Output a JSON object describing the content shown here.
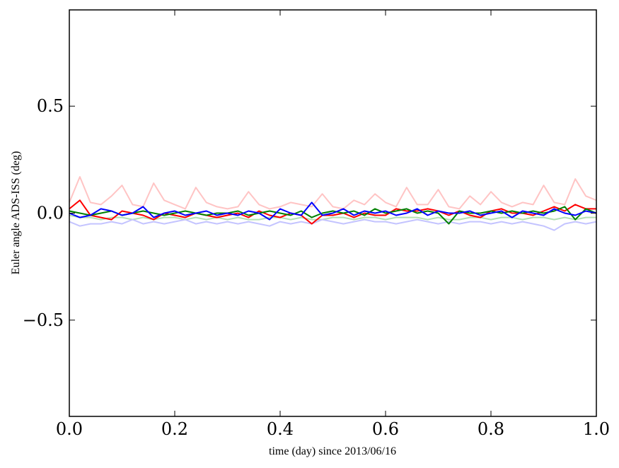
{
  "chart_data": {
    "type": "line",
    "xlabel": "time (day) since 2013/06/16",
    "ylabel": "Euler angle ADS-ISS (deg)",
    "xlim": [
      0.0,
      1.0
    ],
    "ylim": [
      -0.95,
      0.95
    ],
    "xticks": [
      0.0,
      0.2,
      0.4,
      0.6,
      0.8,
      1.0
    ],
    "xtick_labels": [
      "0.0",
      "0.2",
      "0.4",
      "0.6",
      "0.8",
      "1.0"
    ],
    "yticks": [
      -0.5,
      0.0,
      0.5
    ],
    "ytick_labels": [
      "−0.5",
      "0.0",
      "0.5"
    ],
    "grid": false,
    "x": [
      0.0,
      0.02,
      0.04,
      0.06,
      0.08,
      0.1,
      0.12,
      0.14,
      0.16,
      0.18,
      0.2,
      0.22,
      0.24,
      0.26,
      0.28,
      0.3,
      0.32,
      0.34,
      0.36,
      0.38,
      0.4,
      0.42,
      0.44,
      0.46,
      0.48,
      0.5,
      0.52,
      0.54,
      0.56,
      0.58,
      0.6,
      0.62,
      0.64,
      0.66,
      0.68,
      0.7,
      0.72,
      0.74,
      0.76,
      0.78,
      0.8,
      0.82,
      0.84,
      0.86,
      0.88,
      0.9,
      0.92,
      0.94,
      0.96,
      0.98,
      1.0
    ],
    "series": [
      {
        "color": "#ffc4c4",
        "values": [
          0.05,
          0.17,
          0.05,
          0.04,
          0.08,
          0.13,
          0.04,
          0.03,
          0.14,
          0.06,
          0.04,
          0.02,
          0.12,
          0.05,
          0.03,
          0.02,
          0.03,
          0.1,
          0.04,
          0.02,
          0.03,
          0.05,
          0.04,
          0.03,
          0.09,
          0.03,
          0.02,
          0.06,
          0.04,
          0.09,
          0.05,
          0.03,
          0.12,
          0.04,
          0.04,
          0.11,
          0.03,
          0.02,
          0.08,
          0.04,
          0.1,
          0.05,
          0.03,
          0.05,
          0.04,
          0.13,
          0.05,
          0.04,
          0.16,
          0.08,
          0.06
        ]
      },
      {
        "color": "#b4e0b4",
        "values": [
          -0.01,
          -0.02,
          -0.02,
          -0.03,
          -0.02,
          -0.02,
          -0.03,
          -0.02,
          -0.03,
          -0.02,
          -0.02,
          -0.03,
          -0.02,
          -0.03,
          -0.02,
          -0.03,
          -0.02,
          -0.03,
          -0.03,
          -0.02,
          -0.02,
          -0.03,
          -0.02,
          -0.03,
          -0.03,
          -0.02,
          -0.02,
          -0.03,
          -0.02,
          -0.02,
          -0.03,
          -0.02,
          -0.02,
          -0.02,
          -0.03,
          -0.02,
          -0.03,
          -0.03,
          -0.02,
          -0.02,
          -0.03,
          -0.02,
          -0.02,
          -0.03,
          -0.02,
          -0.02,
          -0.03,
          -0.02,
          -0.03,
          -0.02,
          -0.02
        ]
      },
      {
        "color": "#c4c4ff",
        "values": [
          -0.04,
          -0.06,
          -0.05,
          -0.05,
          -0.04,
          -0.05,
          -0.03,
          -0.05,
          -0.04,
          -0.05,
          -0.04,
          -0.03,
          -0.05,
          -0.04,
          -0.05,
          -0.04,
          -0.05,
          -0.04,
          -0.05,
          -0.06,
          -0.04,
          -0.05,
          -0.04,
          -0.05,
          -0.03,
          -0.04,
          -0.05,
          -0.04,
          -0.03,
          -0.04,
          -0.04,
          -0.05,
          -0.04,
          -0.03,
          -0.04,
          -0.05,
          -0.04,
          -0.05,
          -0.04,
          -0.04,
          -0.05,
          -0.04,
          -0.05,
          -0.04,
          -0.05,
          -0.06,
          -0.08,
          -0.05,
          -0.04,
          -0.05,
          -0.04
        ]
      },
      {
        "color": "#ff0000",
        "values": [
          0.02,
          0.06,
          -0.01,
          -0.02,
          -0.03,
          0.01,
          0.0,
          -0.01,
          -0.03,
          0.0,
          -0.01,
          -0.02,
          0.0,
          -0.01,
          -0.02,
          -0.01,
          0.0,
          -0.02,
          0.01,
          -0.01,
          -0.02,
          0.0,
          -0.01,
          -0.05,
          -0.01,
          -0.01,
          0.0,
          -0.02,
          0.0,
          -0.01,
          -0.01,
          0.02,
          0.01,
          0.01,
          0.02,
          0.01,
          -0.01,
          0.01,
          -0.01,
          -0.02,
          0.01,
          0.02,
          0.0,
          0.0,
          -0.01,
          0.01,
          0.03,
          0.01,
          0.04,
          0.02,
          0.02
        ]
      },
      {
        "color": "#008000",
        "values": [
          0.01,
          0.0,
          -0.01,
          0.0,
          0.01,
          -0.01,
          0.0,
          0.01,
          0.0,
          -0.01,
          0.0,
          0.01,
          0.0,
          -0.01,
          0.0,
          0.0,
          0.01,
          -0.01,
          0.0,
          0.01,
          0.0,
          -0.01,
          0.01,
          -0.02,
          0.0,
          0.01,
          0.0,
          0.01,
          -0.01,
          0.02,
          0.0,
          0.01,
          0.02,
          0.0,
          0.01,
          0.0,
          -0.05,
          0.01,
          0.0,
          0.0,
          0.01,
          0.0,
          0.01,
          0.0,
          0.01,
          0.0,
          0.01,
          0.03,
          -0.03,
          0.02,
          0.0
        ]
      },
      {
        "color": "#0000ff",
        "values": [
          0.0,
          -0.02,
          -0.01,
          0.02,
          0.01,
          -0.01,
          0.0,
          0.03,
          -0.02,
          0.0,
          0.01,
          -0.01,
          0.0,
          0.01,
          -0.01,
          0.0,
          -0.01,
          0.01,
          0.0,
          -0.03,
          0.02,
          0.0,
          -0.01,
          0.05,
          -0.01,
          0.0,
          0.02,
          -0.01,
          0.01,
          0.0,
          0.01,
          -0.01,
          0.0,
          0.02,
          -0.01,
          0.01,
          0.0,
          0.0,
          0.01,
          -0.01,
          0.0,
          0.01,
          -0.02,
          0.01,
          0.0,
          -0.01,
          0.02,
          0.0,
          -0.01,
          0.01,
          0.0
        ]
      }
    ]
  }
}
